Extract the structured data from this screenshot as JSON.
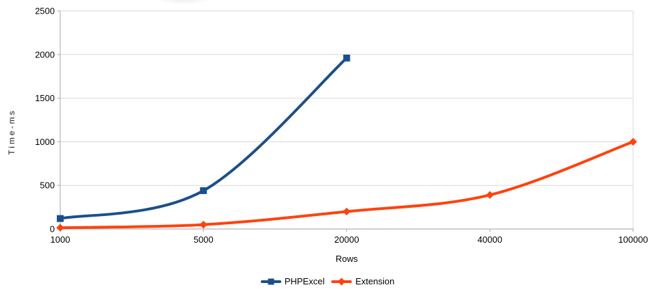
{
  "chart_data": {
    "type": "line",
    "title": "",
    "categories": [
      "1000",
      "5000",
      "20000",
      "40000",
      "100000"
    ],
    "series": [
      {
        "name": "PHPExcel",
        "color": "#1b4f8a",
        "marker": "square",
        "values": [
          120,
          440,
          1960,
          null,
          null
        ]
      },
      {
        "name": "Extension",
        "color": "#ff420e",
        "marker": "diamond",
        "values": [
          15,
          50,
          200,
          390,
          1000
        ]
      }
    ],
    "xlabel": "Rows",
    "ylabel": "Time-ms",
    "ylim": [
      0,
      2500
    ],
    "yticks": [
      0,
      500,
      1000,
      1500,
      2000,
      2500
    ],
    "grid": "horizontal-only",
    "legend_position": "bottom",
    "line_style": "smooth"
  },
  "style": {
    "background": "#ffffff",
    "gridline_color": "#d9d9d9",
    "axis_color": "#b3b3b3",
    "text_color": "#000000",
    "tick_font_size": 13
  }
}
